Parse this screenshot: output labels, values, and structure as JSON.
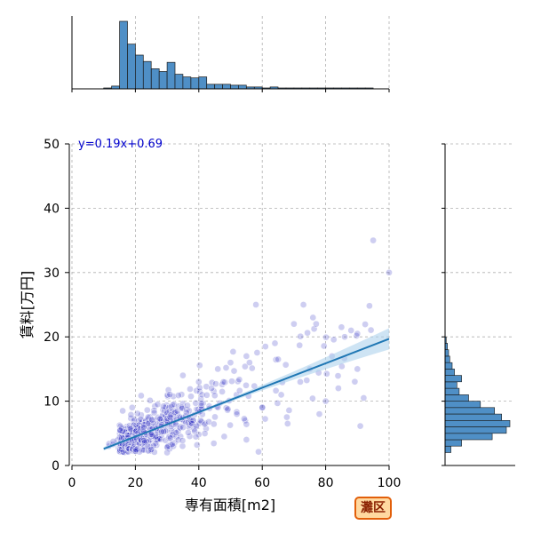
{
  "chart_data": {
    "type": "scatter",
    "xlabel": "専有面積[m2]",
    "ylabel": "賃料[万円]",
    "xlim": [
      0,
      100
    ],
    "ylim": [
      0,
      50
    ],
    "x_ticks": [
      0,
      20,
      40,
      60,
      80,
      100
    ],
    "y_ticks": [
      0,
      10,
      20,
      30,
      40,
      50
    ],
    "grid": true,
    "regression": {
      "label": "y=0.19x+0.69",
      "slope": 0.19,
      "intercept": 0.69,
      "x_range": [
        10,
        100
      ],
      "color": "#1f77b4",
      "band_color": "#aed2ec"
    },
    "point_color": "#2020c0",
    "outlier_points": [
      {
        "x": 95,
        "y": 35
      },
      {
        "x": 100,
        "y": 30
      },
      {
        "x": 58,
        "y": 25
      },
      {
        "x": 73,
        "y": 25
      },
      {
        "x": 76,
        "y": 23
      },
      {
        "x": 77,
        "y": 22
      },
      {
        "x": 70,
        "y": 22
      },
      {
        "x": 85,
        "y": 21.5
      },
      {
        "x": 88,
        "y": 21
      },
      {
        "x": 90,
        "y": 20.5
      },
      {
        "x": 86,
        "y": 20
      },
      {
        "x": 64,
        "y": 19
      },
      {
        "x": 61,
        "y": 18.5
      },
      {
        "x": 55,
        "y": 17
      },
      {
        "x": 65,
        "y": 16.5
      },
      {
        "x": 82,
        "y": 17
      },
      {
        "x": 90,
        "y": 15
      },
      {
        "x": 92,
        "y": 10.5
      },
      {
        "x": 84,
        "y": 12
      },
      {
        "x": 78,
        "y": 8
      },
      {
        "x": 68,
        "y": 6.5
      },
      {
        "x": 55,
        "y": 4
      },
      {
        "x": 48,
        "y": 4.5
      },
      {
        "x": 30,
        "y": 2
      },
      {
        "x": 25,
        "y": 2.5
      },
      {
        "x": 16,
        "y": 8.5
      },
      {
        "x": 19,
        "y": 9
      },
      {
        "x": 27,
        "y": 9.5
      },
      {
        "x": 35,
        "y": 14
      },
      {
        "x": 40,
        "y": 13
      },
      {
        "x": 46,
        "y": 15
      },
      {
        "x": 50,
        "y": 16
      },
      {
        "x": 56,
        "y": 16
      },
      {
        "x": 75,
        "y": 15
      },
      {
        "x": 72,
        "y": 13
      },
      {
        "x": 80,
        "y": 10
      },
      {
        "x": 60,
        "y": 9
      },
      {
        "x": 52,
        "y": 8
      },
      {
        "x": 44,
        "y": 12
      },
      {
        "x": 66,
        "y": 11
      }
    ],
    "top_histogram": {
      "bin_edges": [
        10,
        12.5,
        15,
        17.5,
        20,
        22.5,
        25,
        27.5,
        30,
        32.5,
        35,
        37.5,
        40,
        42.5,
        45,
        47.5,
        50,
        52.5,
        55,
        57.5,
        60,
        62.5,
        65,
        67.5,
        70,
        72.5,
        75,
        77.5,
        80,
        82.5,
        85,
        87.5,
        90,
        92.5,
        95
      ],
      "counts": [
        1,
        3,
        74,
        49,
        37,
        30,
        22,
        19,
        29,
        16,
        13,
        12,
        13,
        5,
        5,
        5,
        4,
        4,
        2,
        2,
        1,
        2,
        1,
        1,
        1,
        1,
        1,
        1,
        1,
        1,
        1,
        1,
        1,
        1
      ]
    },
    "right_histogram": {
      "bin_edges": [
        2,
        3,
        4,
        5,
        6,
        7,
        8,
        9,
        10,
        11,
        12,
        13,
        14,
        15,
        16,
        17,
        18,
        19,
        20
      ],
      "counts": [
        5,
        14,
        40,
        52,
        55,
        48,
        42,
        30,
        20,
        12,
        10,
        14,
        8,
        6,
        4,
        3,
        2,
        1
      ]
    },
    "hist_color": "#4f8fc6"
  },
  "badge": {
    "text": "灘区"
  }
}
